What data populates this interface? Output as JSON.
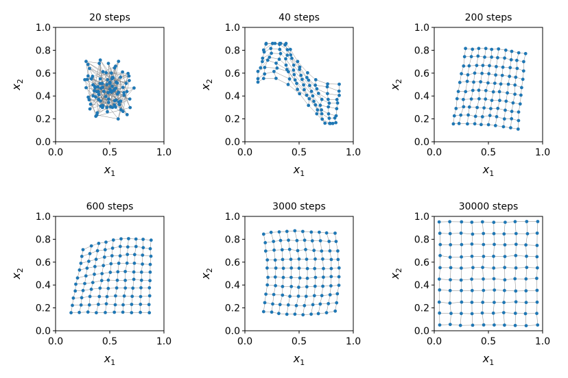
{
  "figure": {
    "description_none": ""
  },
  "chart_data": [
    {
      "type": "scatter",
      "title": "20 steps",
      "xlabel": "x",
      "xlabel_sub": "1",
      "ylabel": "x",
      "ylabel_sub": "2",
      "xlim": [
        0,
        1
      ],
      "ylim": [
        0,
        1
      ],
      "xticks": [
        "0.0",
        "0.5",
        "1.0"
      ],
      "yticks": [
        "0.0",
        "0.2",
        "0.4",
        "0.6",
        "0.8",
        "1.0"
      ],
      "grid": false,
      "connected_grid": [
        10,
        10
      ],
      "point_color": "#1f77b4",
      "line_color": "#808080",
      "stage": 0
    },
    {
      "type": "scatter",
      "title": "40 steps",
      "xlabel": "x",
      "xlabel_sub": "1",
      "ylabel": "x",
      "ylabel_sub": "2",
      "xlim": [
        0,
        1
      ],
      "ylim": [
        0,
        1
      ],
      "xticks": [
        "0.0",
        "0.5",
        "1.0"
      ],
      "yticks": [
        "0.0",
        "0.2",
        "0.4",
        "0.6",
        "0.8",
        "1.0"
      ],
      "grid": false,
      "connected_grid": [
        10,
        10
      ],
      "point_color": "#1f77b4",
      "line_color": "#808080",
      "stage": 1
    },
    {
      "type": "scatter",
      "title": "200 steps",
      "xlabel": "x",
      "xlabel_sub": "1",
      "ylabel": "x",
      "ylabel_sub": "2",
      "xlim": [
        0,
        1
      ],
      "ylim": [
        0,
        1
      ],
      "xticks": [
        "0.0",
        "0.5",
        "1.0"
      ],
      "yticks": [
        "0.0",
        "0.2",
        "0.4",
        "0.6",
        "0.8",
        "1.0"
      ],
      "grid": false,
      "connected_grid": [
        10,
        10
      ],
      "point_color": "#1f77b4",
      "line_color": "#808080",
      "stage": 2
    },
    {
      "type": "scatter",
      "title": "600 steps",
      "xlabel": "x",
      "xlabel_sub": "1",
      "ylabel": "x",
      "ylabel_sub": "2",
      "xlim": [
        0,
        1
      ],
      "ylim": [
        0,
        1
      ],
      "xticks": [
        "0.0",
        "0.5",
        "1.0"
      ],
      "yticks": [
        "0.0",
        "0.2",
        "0.4",
        "0.6",
        "0.8",
        "1.0"
      ],
      "grid": false,
      "connected_grid": [
        10,
        10
      ],
      "point_color": "#1f77b4",
      "line_color": "#808080",
      "stage": 3
    },
    {
      "type": "scatter",
      "title": "3000 steps",
      "xlabel": "x",
      "xlabel_sub": "1",
      "ylabel": "x",
      "ylabel_sub": "2",
      "xlim": [
        0,
        1
      ],
      "ylim": [
        0,
        1
      ],
      "xticks": [
        "0.0",
        "0.5",
        "1.0"
      ],
      "yticks": [
        "0.0",
        "0.2",
        "0.4",
        "0.6",
        "0.8",
        "1.0"
      ],
      "grid": false,
      "connected_grid": [
        10,
        10
      ],
      "point_color": "#1f77b4",
      "line_color": "#808080",
      "stage": 4
    },
    {
      "type": "scatter",
      "title": "30000 steps",
      "xlabel": "x",
      "xlabel_sub": "1",
      "ylabel": "x",
      "ylabel_sub": "2",
      "xlim": [
        0,
        1
      ],
      "ylim": [
        0,
        1
      ],
      "xticks": [
        "0.0",
        "0.5",
        "1.0"
      ],
      "yticks": [
        "0.0",
        "0.2",
        "0.4",
        "0.6",
        "0.8",
        "1.0"
      ],
      "grid": false,
      "connected_grid": [
        10,
        10
      ],
      "point_color": "#1f77b4",
      "line_color": "#808080",
      "stage": 5
    }
  ]
}
